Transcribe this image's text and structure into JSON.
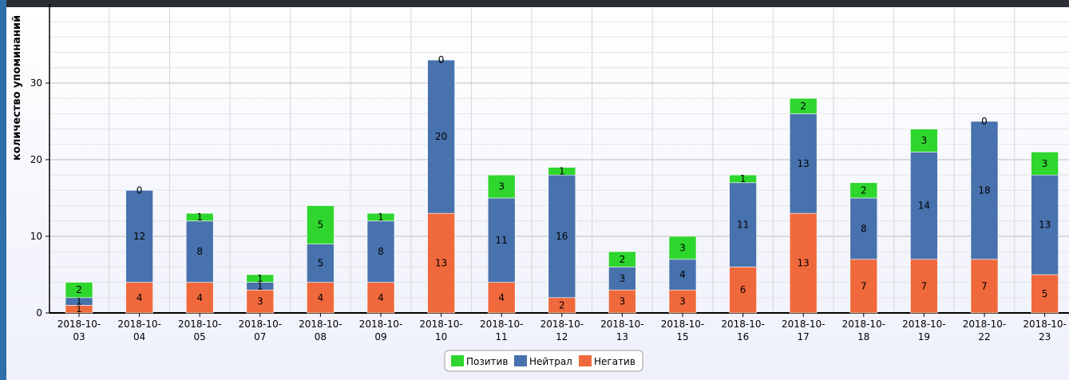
{
  "chart_data": {
    "type": "bar",
    "stacked": true,
    "ylabel": "количество упоминаний",
    "ylim": [
      0,
      40
    ],
    "yticks": [
      0,
      10,
      20,
      30
    ],
    "grid": true,
    "legend_position": "bottom",
    "categories": [
      [
        "2018-10-",
        "03"
      ],
      [
        "2018-10-",
        "04"
      ],
      [
        "2018-10-",
        "05"
      ],
      [
        "2018-10-",
        "07"
      ],
      [
        "2018-10-",
        "08"
      ],
      [
        "2018-10-",
        "09"
      ],
      [
        "2018-10-",
        "10"
      ],
      [
        "2018-10-",
        "11"
      ],
      [
        "2018-10-",
        "12"
      ],
      [
        "2018-10-",
        "13"
      ],
      [
        "2018-10-",
        "15"
      ],
      [
        "2018-10-",
        "16"
      ],
      [
        "2018-10-",
        "17"
      ],
      [
        "2018-10-",
        "18"
      ],
      [
        "2018-10-",
        "19"
      ],
      [
        "2018-10-",
        "22"
      ],
      [
        "2018-10-",
        "23"
      ]
    ],
    "series": [
      {
        "name": "Негатив",
        "color": "#f0693c",
        "values": [
          1,
          4,
          4,
          3,
          4,
          4,
          13,
          4,
          2,
          3,
          3,
          6,
          13,
          7,
          7,
          7,
          5
        ]
      },
      {
        "name": "Нейтрал",
        "color": "#4872ad",
        "values": [
          1,
          12,
          8,
          1,
          5,
          8,
          20,
          11,
          16,
          3,
          4,
          11,
          13,
          8,
          14,
          18,
          13
        ]
      },
      {
        "name": "Позитив",
        "color": "#2ed62e",
        "values": [
          2,
          0,
          1,
          1,
          5,
          1,
          0,
          3,
          1,
          2,
          3,
          1,
          2,
          2,
          3,
          0,
          3
        ]
      }
    ],
    "legend_order": [
      "Позитив",
      "Нейтрал",
      "Негатив"
    ]
  }
}
